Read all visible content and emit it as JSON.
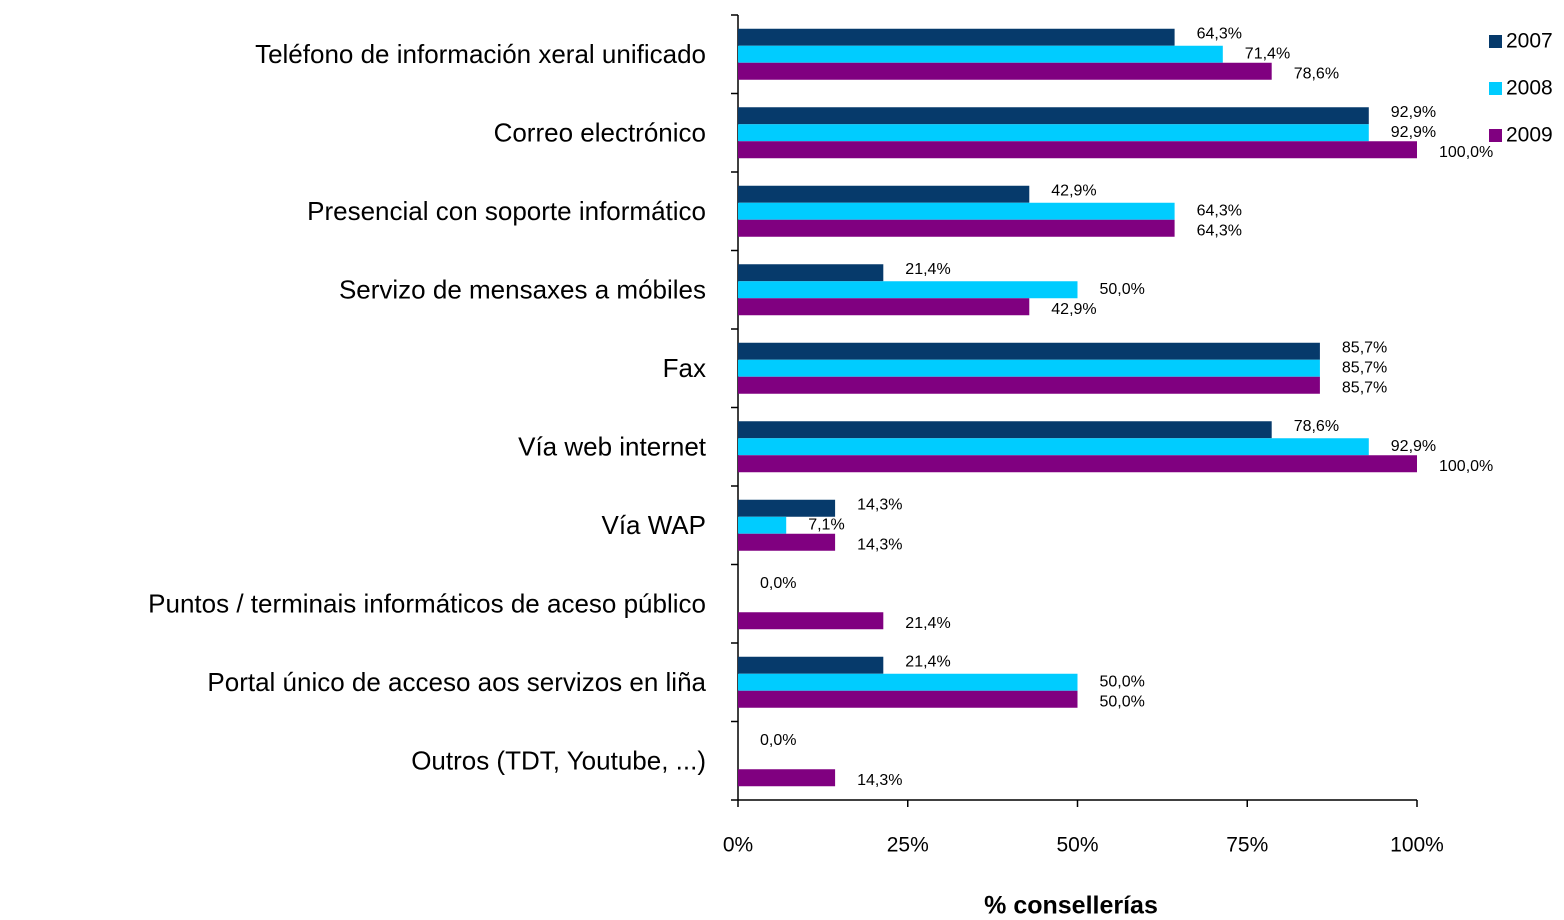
{
  "chart_data": {
    "type": "bar",
    "orientation": "horizontal",
    "xlabel": "% consellerías",
    "categories": [
      "Teléfono de información xeral unificado",
      "Correo electrónico",
      "Presencial con soporte informático",
      "Servizo de mensaxes a móbiles",
      "Fax",
      "Vía web internet",
      "Vía WAP",
      "Puntos / terminais informáticos de aceso público",
      "Portal único de acceso aos servizos en liña",
      "Outros (TDT, Youtube, ...)"
    ],
    "series": [
      {
        "name": "2007",
        "color": "#063a6b",
        "values": [
          64.3,
          92.9,
          42.9,
          21.4,
          85.7,
          78.6,
          14.3,
          0,
          21.4,
          0
        ],
        "value_labels": [
          "64,3%",
          "92,9%",
          "42,9%",
          "21,4%",
          "85,7%",
          "78,6%",
          "14,3%",
          "0,0%",
          "21,4%",
          "0,0%"
        ]
      },
      {
        "name": "2008",
        "color": "#00ccff",
        "values": [
          71.4,
          92.9,
          64.3,
          50.0,
          85.7,
          92.9,
          7.1,
          null,
          50.0,
          null
        ],
        "value_labels": [
          "71,4%",
          "92,9%",
          "64,3%",
          "50,0%",
          "85,7%",
          "92,9%",
          "7,1%",
          null,
          "50,0%",
          null
        ]
      },
      {
        "name": "2009",
        "color": "#800080",
        "values": [
          78.6,
          100.0,
          64.3,
          42.9,
          85.7,
          100.0,
          14.3,
          21.4,
          50.0,
          14.3
        ],
        "value_labels": [
          "78,6%",
          "100,0%",
          "64,3%",
          "42,9%",
          "85,7%",
          "100,0%",
          "14,3%",
          "21,4%",
          "50,0%",
          "14,3%"
        ]
      }
    ],
    "xlim": [
      0,
      100
    ],
    "xticks": [
      {
        "value": 0,
        "label": "0%"
      },
      {
        "value": 25,
        "label": "25%"
      },
      {
        "value": 50,
        "label": "50%"
      },
      {
        "value": 75,
        "label": "75%"
      },
      {
        "value": 100,
        "label": "100%"
      }
    ],
    "legend": "right"
  }
}
